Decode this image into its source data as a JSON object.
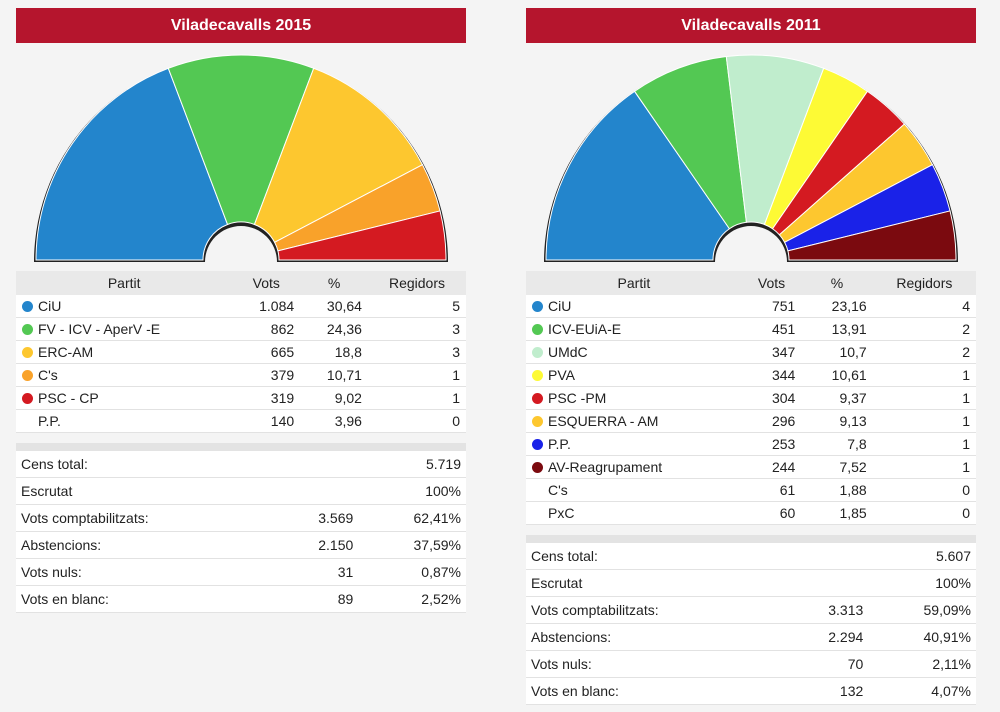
{
  "chart_data": [
    {
      "type": "semicircle-pie",
      "title": "Viladecavalls 2015",
      "columns": {
        "party": "Partit",
        "votes": "Vots",
        "pct": "%",
        "seats": "Regidors"
      },
      "parties": [
        {
          "name": "CiU",
          "votes": "1.084",
          "pct": "30,64",
          "seats": 5,
          "color": "#2385cc"
        },
        {
          "name": "FV - ICV - AperV -E",
          "votes": "862",
          "pct": "24,36",
          "seats": 3,
          "color": "#53c853"
        },
        {
          "name": "ERC-AM",
          "votes": "665",
          "pct": "18,8",
          "seats": 3,
          "color": "#fdc72f"
        },
        {
          "name": "C's",
          "votes": "379",
          "pct": "10,71",
          "seats": 1,
          "color": "#f9a22a"
        },
        {
          "name": "PSC - CP",
          "votes": "319",
          "pct": "9,02",
          "seats": 1,
          "color": "#d41a21"
        },
        {
          "name": "P.P.",
          "votes": "140",
          "pct": "3,96",
          "seats": 0,
          "color": ""
        }
      ],
      "summary": [
        {
          "label": "Cens total:",
          "value": "",
          "pct": "5.719"
        },
        {
          "label": "Escrutat",
          "value": "",
          "pct": "100%"
        },
        {
          "label": "Vots comptabilitzats:",
          "value": "3.569",
          "pct": "62,41%"
        },
        {
          "label": "Abstencions:",
          "value": "2.150",
          "pct": "37,59%"
        },
        {
          "label": "Vots nuls:",
          "value": "31",
          "pct": "0,87%"
        },
        {
          "label": "Vots en blanc:",
          "value": "89",
          "pct": "2,52%"
        }
      ]
    },
    {
      "type": "semicircle-pie",
      "title": "Viladecavalls 2011",
      "columns": {
        "party": "Partit",
        "votes": "Vots",
        "pct": "%",
        "seats": "Regidors"
      },
      "parties": [
        {
          "name": "CiU",
          "votes": "751",
          "pct": "23,16",
          "seats": 4,
          "color": "#2385cc"
        },
        {
          "name": "ICV-EUiA-E",
          "votes": "451",
          "pct": "13,91",
          "seats": 2,
          "color": "#53c853"
        },
        {
          "name": "UMdC",
          "votes": "347",
          "pct": "10,7",
          "seats": 2,
          "color": "#c0edcd"
        },
        {
          "name": "PVA",
          "votes": "344",
          "pct": "10,61",
          "seats": 1,
          "color": "#fdfa35"
        },
        {
          "name": "PSC -PM",
          "votes": "304",
          "pct": "9,37",
          "seats": 1,
          "color": "#d41a21"
        },
        {
          "name": "ESQUERRA - AM",
          "votes": "296",
          "pct": "9,13",
          "seats": 1,
          "color": "#fdc72f"
        },
        {
          "name": "P.P.",
          "votes": "253",
          "pct": "7,8",
          "seats": 1,
          "color": "#1a22e8"
        },
        {
          "name": "AV-Reagrupament",
          "votes": "244",
          "pct": "7,52",
          "seats": 1,
          "color": "#7b0a0f"
        },
        {
          "name": "C's",
          "votes": "61",
          "pct": "1,88",
          "seats": 0,
          "color": ""
        },
        {
          "name": "PxC",
          "votes": "60",
          "pct": "1,85",
          "seats": 0,
          "color": ""
        }
      ],
      "summary": [
        {
          "label": "Cens total:",
          "value": "",
          "pct": "5.607"
        },
        {
          "label": "Escrutat",
          "value": "",
          "pct": "100%"
        },
        {
          "label": "Vots comptabilitzats:",
          "value": "3.313",
          "pct": "59,09%"
        },
        {
          "label": "Abstencions:",
          "value": "2.294",
          "pct": "40,91%"
        },
        {
          "label": "Vots nuls:",
          "value": "70",
          "pct": "2,11%"
        },
        {
          "label": "Vots en blanc:",
          "value": "132",
          "pct": "4,07%"
        }
      ]
    }
  ]
}
